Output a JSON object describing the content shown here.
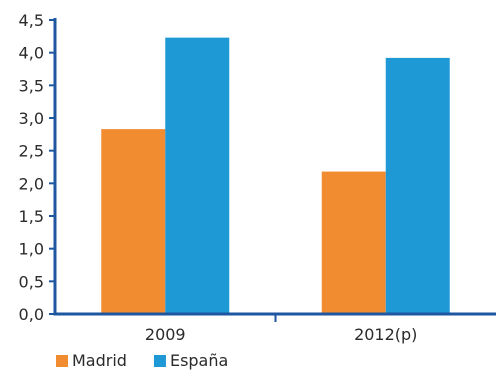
{
  "chart_data": {
    "type": "bar",
    "title": "",
    "xlabel": "",
    "ylabel": "",
    "categories": [
      "2009",
      "2012(p)"
    ],
    "series": [
      {
        "name": "Madrid",
        "values": [
          2.83,
          2.18
        ],
        "color": "#F28C30"
      },
      {
        "name": "España",
        "values": [
          4.23,
          3.92
        ],
        "color": "#1F98D6"
      }
    ],
    "ylim": [
      0,
      4.5
    ],
    "yticks": [
      "0,0",
      "0,5",
      "1,0",
      "1,5",
      "2,0",
      "2,5",
      "3,0",
      "3,5",
      "4,0",
      "4,5"
    ],
    "grid": false,
    "legend": "bottom-left",
    "axis_color": "#1E56A0"
  }
}
